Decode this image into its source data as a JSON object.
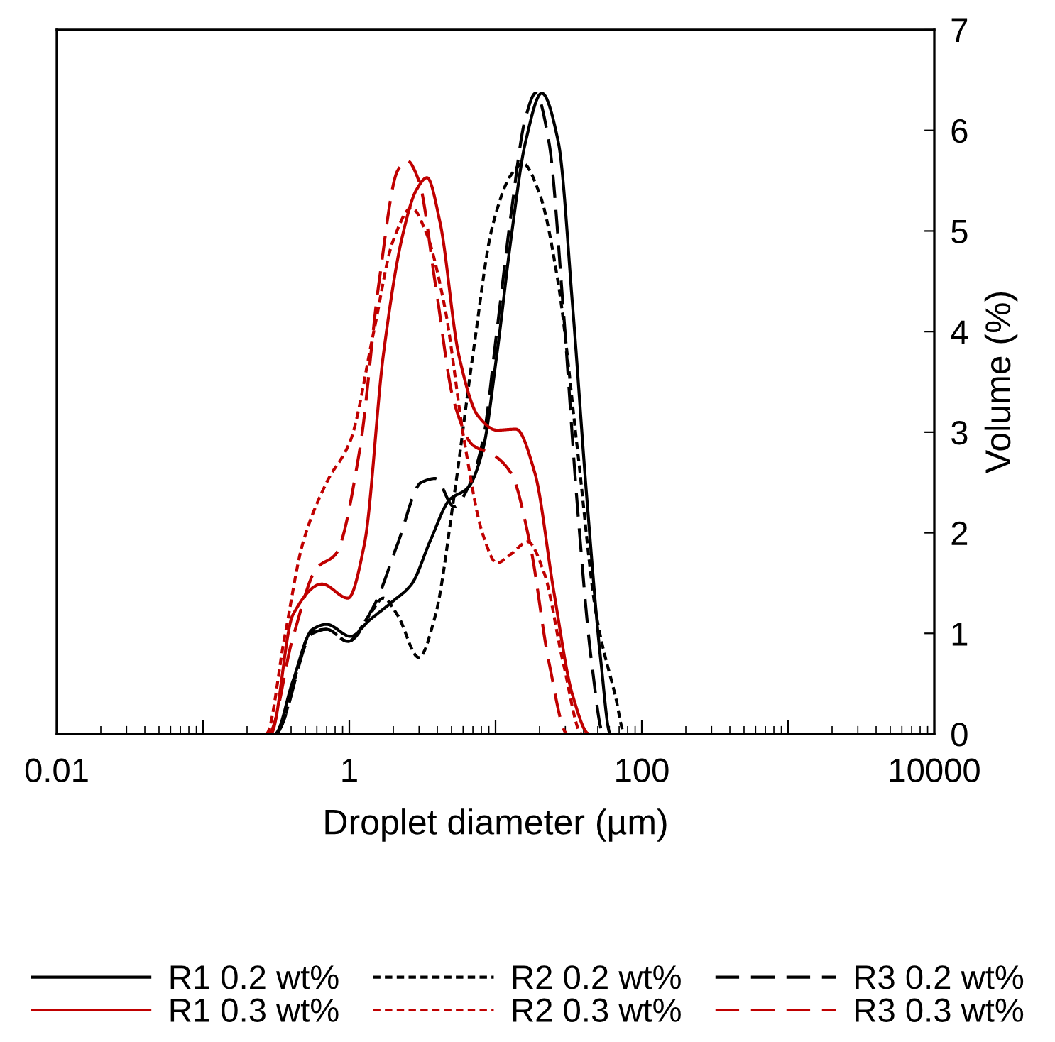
{
  "chart_data": {
    "type": "line",
    "xlabel": "Droplet diameter (µm)",
    "ylabel": "Volume (%)",
    "log": "x",
    "xlim": [
      0.01,
      10000
    ],
    "xticks": [
      0.01,
      {
        "value": 0.1,
        "label": null
      },
      1,
      {
        "value": 10,
        "label": null
      },
      100,
      {
        "value": 1000,
        "label": null
      },
      10000
    ],
    "ylim": [
      0,
      7
    ],
    "yticks": [
      0,
      1,
      2,
      3,
      4,
      5,
      6,
      7
    ],
    "grid": false,
    "legend": "bottom",
    "marker": "none",
    "series": [
      {
        "name": "R1 0.2 wt%",
        "color": "#000000",
        "line_style": "solid",
        "x": [
          0.31,
          0.41,
          0.56,
          0.7,
          1.02,
          1.37,
          1.99,
          2.67,
          3.6,
          4.86,
          6.5,
          8.2,
          10.2,
          12.8,
          16,
          20.7,
          26.9,
          33.7,
          42,
          52.6,
          61
        ],
        "values": [
          0,
          0.52,
          1.04,
          1.09,
          0.97,
          1.13,
          1.32,
          1.49,
          1.93,
          2.33,
          2.45,
          2.83,
          3.77,
          4.94,
          5.88,
          6.37,
          5.88,
          4.24,
          2.36,
          0.71,
          0
        ]
      },
      {
        "name": "R2 0.2 wt%",
        "color": "#000000",
        "line_style": "dotted",
        "x": [
          0.31,
          0.56,
          0.7,
          0.98,
          1.37,
          1.71,
          2.14,
          2.99,
          3.88,
          5.2,
          7.0,
          9.5,
          12.8,
          15.4,
          20,
          26.9,
          36.3,
          48.9,
          65.9,
          76.5
        ],
        "values": [
          0,
          1.02,
          1.04,
          0.92,
          1.18,
          1.35,
          1.18,
          0.76,
          1.18,
          2.36,
          3.77,
          5.04,
          5.56,
          5.67,
          5.37,
          4.47,
          2.83,
          1.18,
          0.38,
          0
        ]
      },
      {
        "name": "R3 0.2 wt%",
        "color": "#000000",
        "line_style": "dashed",
        "x": [
          0.31,
          0.56,
          0.7,
          0.98,
          1.47,
          2.14,
          3.1,
          3.88,
          5.2,
          6.5,
          8.2,
          10.2,
          12.8,
          16,
          18.8,
          23.2,
          29,
          36.3,
          45.4,
          54.7
        ],
        "values": [
          0,
          1.0,
          1.04,
          0.92,
          1.27,
          1.89,
          2.5,
          2.54,
          2.26,
          2.45,
          2.92,
          4.0,
          5.18,
          6.12,
          6.37,
          5.88,
          4.24,
          2.26,
          0.71,
          0
        ]
      },
      {
        "name": "R1 0.3 wt%",
        "color": "#c00000",
        "line_style": "solid",
        "x": [
          0.01,
          0.29,
          0.41,
          0.65,
          0.98,
          1.27,
          1.71,
          2.3,
          2.88,
          3.4,
          4.18,
          5.6,
          7.6,
          10.2,
          13.8,
          18.6,
          25,
          33.7,
          43.7,
          3700
        ],
        "values": [
          0,
          0,
          1.18,
          1.49,
          1.35,
          1.89,
          3.77,
          4.94,
          5.41,
          5.53,
          5.08,
          3.77,
          3.16,
          3.02,
          3.03,
          2.59,
          1.42,
          0.38,
          0,
          0
        ]
      },
      {
        "name": "R2 0.3 wt%",
        "color": "#c00000",
        "line_style": "dotted",
        "x": [
          0.27,
          0.36,
          0.48,
          0.7,
          1.02,
          1.47,
          1.99,
          2.67,
          3.34,
          4.5,
          6.1,
          8.2,
          10.2,
          12.8,
          16.6,
          21.5,
          29,
          39
        ],
        "values": [
          0,
          0.95,
          1.89,
          2.5,
          2.92,
          4.0,
          4.9,
          5.23,
          4.99,
          4.24,
          2.92,
          1.98,
          1.7,
          1.79,
          1.91,
          1.6,
          0.71,
          0
        ]
      },
      {
        "name": "R3 0.3 wt%",
        "color": "#c00000",
        "line_style": "dashed",
        "x": [
          0.28,
          0.41,
          0.6,
          0.81,
          1.18,
          1.59,
          2.14,
          2.48,
          2.99,
          3.88,
          5.2,
          7.0,
          9.5,
          12.8,
          17.2,
          23.2,
          31
        ],
        "values": [
          0,
          0.95,
          1.65,
          1.79,
          2.83,
          4.47,
          5.6,
          5.7,
          5.5,
          4.47,
          3.3,
          2.87,
          2.78,
          2.59,
          1.89,
          0.71,
          0
        ]
      }
    ]
  }
}
